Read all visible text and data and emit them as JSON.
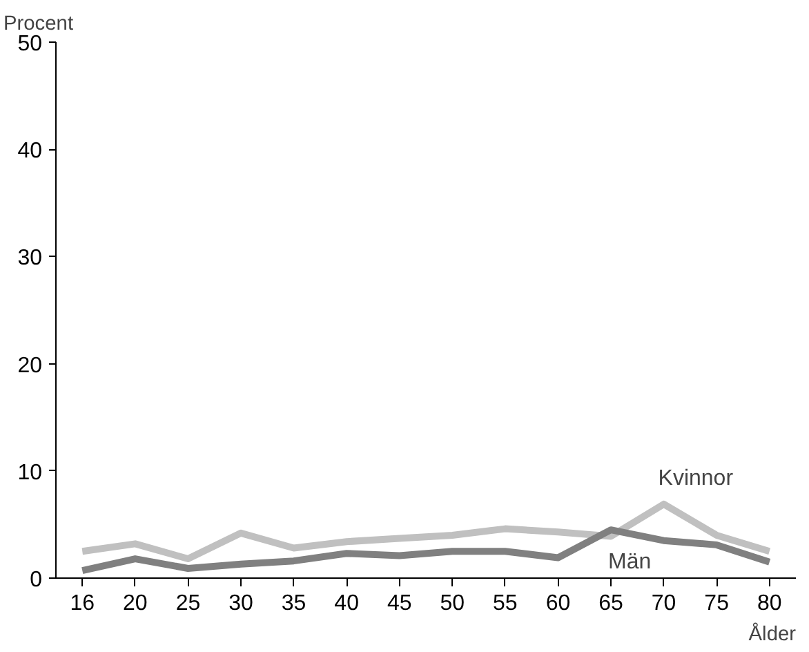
{
  "chart_data": {
    "type": "line",
    "ylabel": "Procent",
    "xlabel": "Ålder",
    "categories": [
      "16",
      "20",
      "25",
      "30",
      "35",
      "40",
      "45",
      "50",
      "55",
      "60",
      "65",
      "70",
      "75",
      "80"
    ],
    "series": [
      {
        "name": "Kvinnor",
        "color": "#c0c0c0",
        "values": [
          2.5,
          3.2,
          1.8,
          4.2,
          2.8,
          3.4,
          3.7,
          4.0,
          4.6,
          4.3,
          3.9,
          6.9,
          4.0,
          2.5
        ]
      },
      {
        "name": "Män",
        "color": "#808080",
        "values": [
          0.7,
          1.8,
          0.9,
          1.3,
          1.6,
          2.3,
          2.1,
          2.5,
          2.5,
          1.9,
          4.5,
          3.5,
          3.1,
          1.5
        ]
      }
    ],
    "ylim": [
      0,
      50
    ],
    "yticks": [
      0,
      10,
      20,
      30,
      40,
      50
    ],
    "grid": false,
    "legend": false
  }
}
